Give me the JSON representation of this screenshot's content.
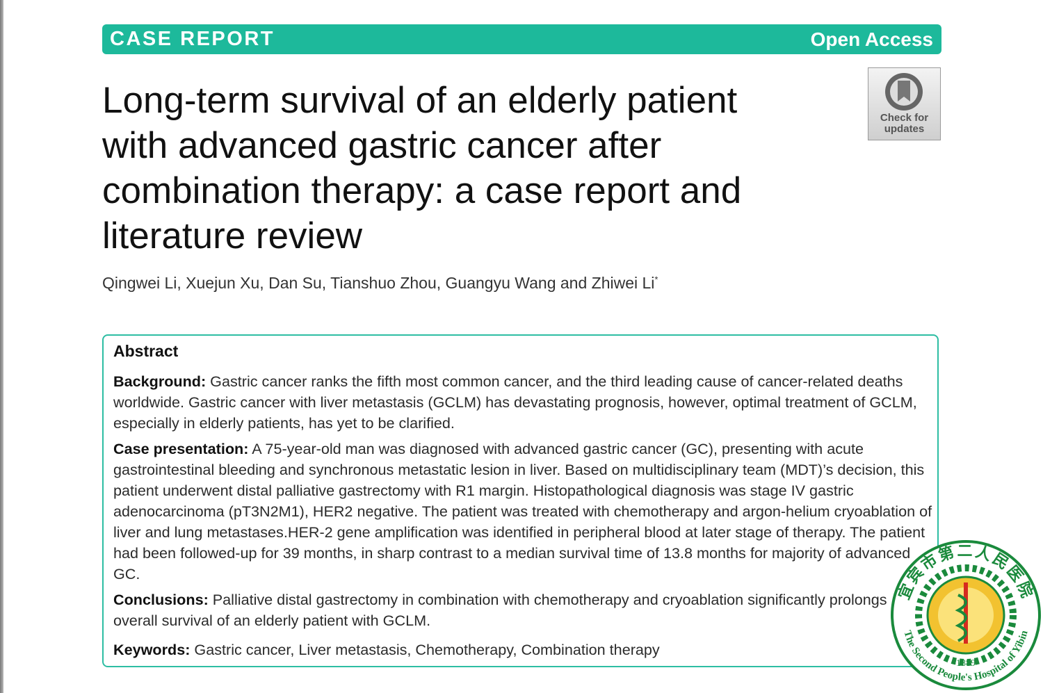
{
  "header": {
    "label": "CASE REPORT",
    "access": "Open Access"
  },
  "badge": {
    "lines": [
      "Check for",
      "updates"
    ]
  },
  "title": {
    "lines": [
      "Long-term survival of an elderly patient",
      "with advanced gastric cancer after",
      "combination therapy: a case report and",
      "literature review"
    ]
  },
  "authors": {
    "names": "Qingwei Li, Xuejun Xu, Dan Su, Tianshuo Zhou, Guangyu Wang and Zhiwei Li",
    "mark": "*"
  },
  "abstract": {
    "heading": "Abstract",
    "sections": [
      {
        "label": "Background:",
        "text": "Gastric cancer ranks the fifth most common cancer, and the third leading cause of cancer-related deaths worldwide. Gastric cancer with liver metastasis (GCLM) has devastating prognosis, however, optimal treatment of GCLM, especially in elderly patients, has yet to be clarified."
      },
      {
        "label": "Case presentation:",
        "text": "A 75-year-old man was diagnosed with advanced gastric cancer (GC), presenting with acute gastrointestinal bleeding and synchronous metastatic lesion in liver. Based on multidisciplinary team (MDT)’s decision, this patient underwent distal palliative gastrectomy with R1 margin. Histopathological diagnosis was stage IV gastric adenocarcinoma (pT3N2M1), HER2 negative. The patient was treated with chemotherapy and argon-helium cryoablation of liver and lung metastases.HER-2 gene amplification was identified in peripheral blood at later stage of therapy. The patient had been followed-up for 39 months, in sharp contrast to a median survival time of 13.8 months for majority of advanced GC."
      },
      {
        "label": "Conclusions:",
        "text": "Palliative distal gastrectomy in combination with chemotherapy and cryoablation significantly prolongs overall survival of an elderly patient with GCLM."
      },
      {
        "label": "Keywords:",
        "text": "Gastric cancer, Liver metastasis, Chemotherapy, Combination therapy"
      }
    ]
  },
  "logo": {
    "chinese": "宜宾市第二人民医院",
    "english": "The Second People's Hospital of Yibin",
    "year": "-1889-"
  }
}
